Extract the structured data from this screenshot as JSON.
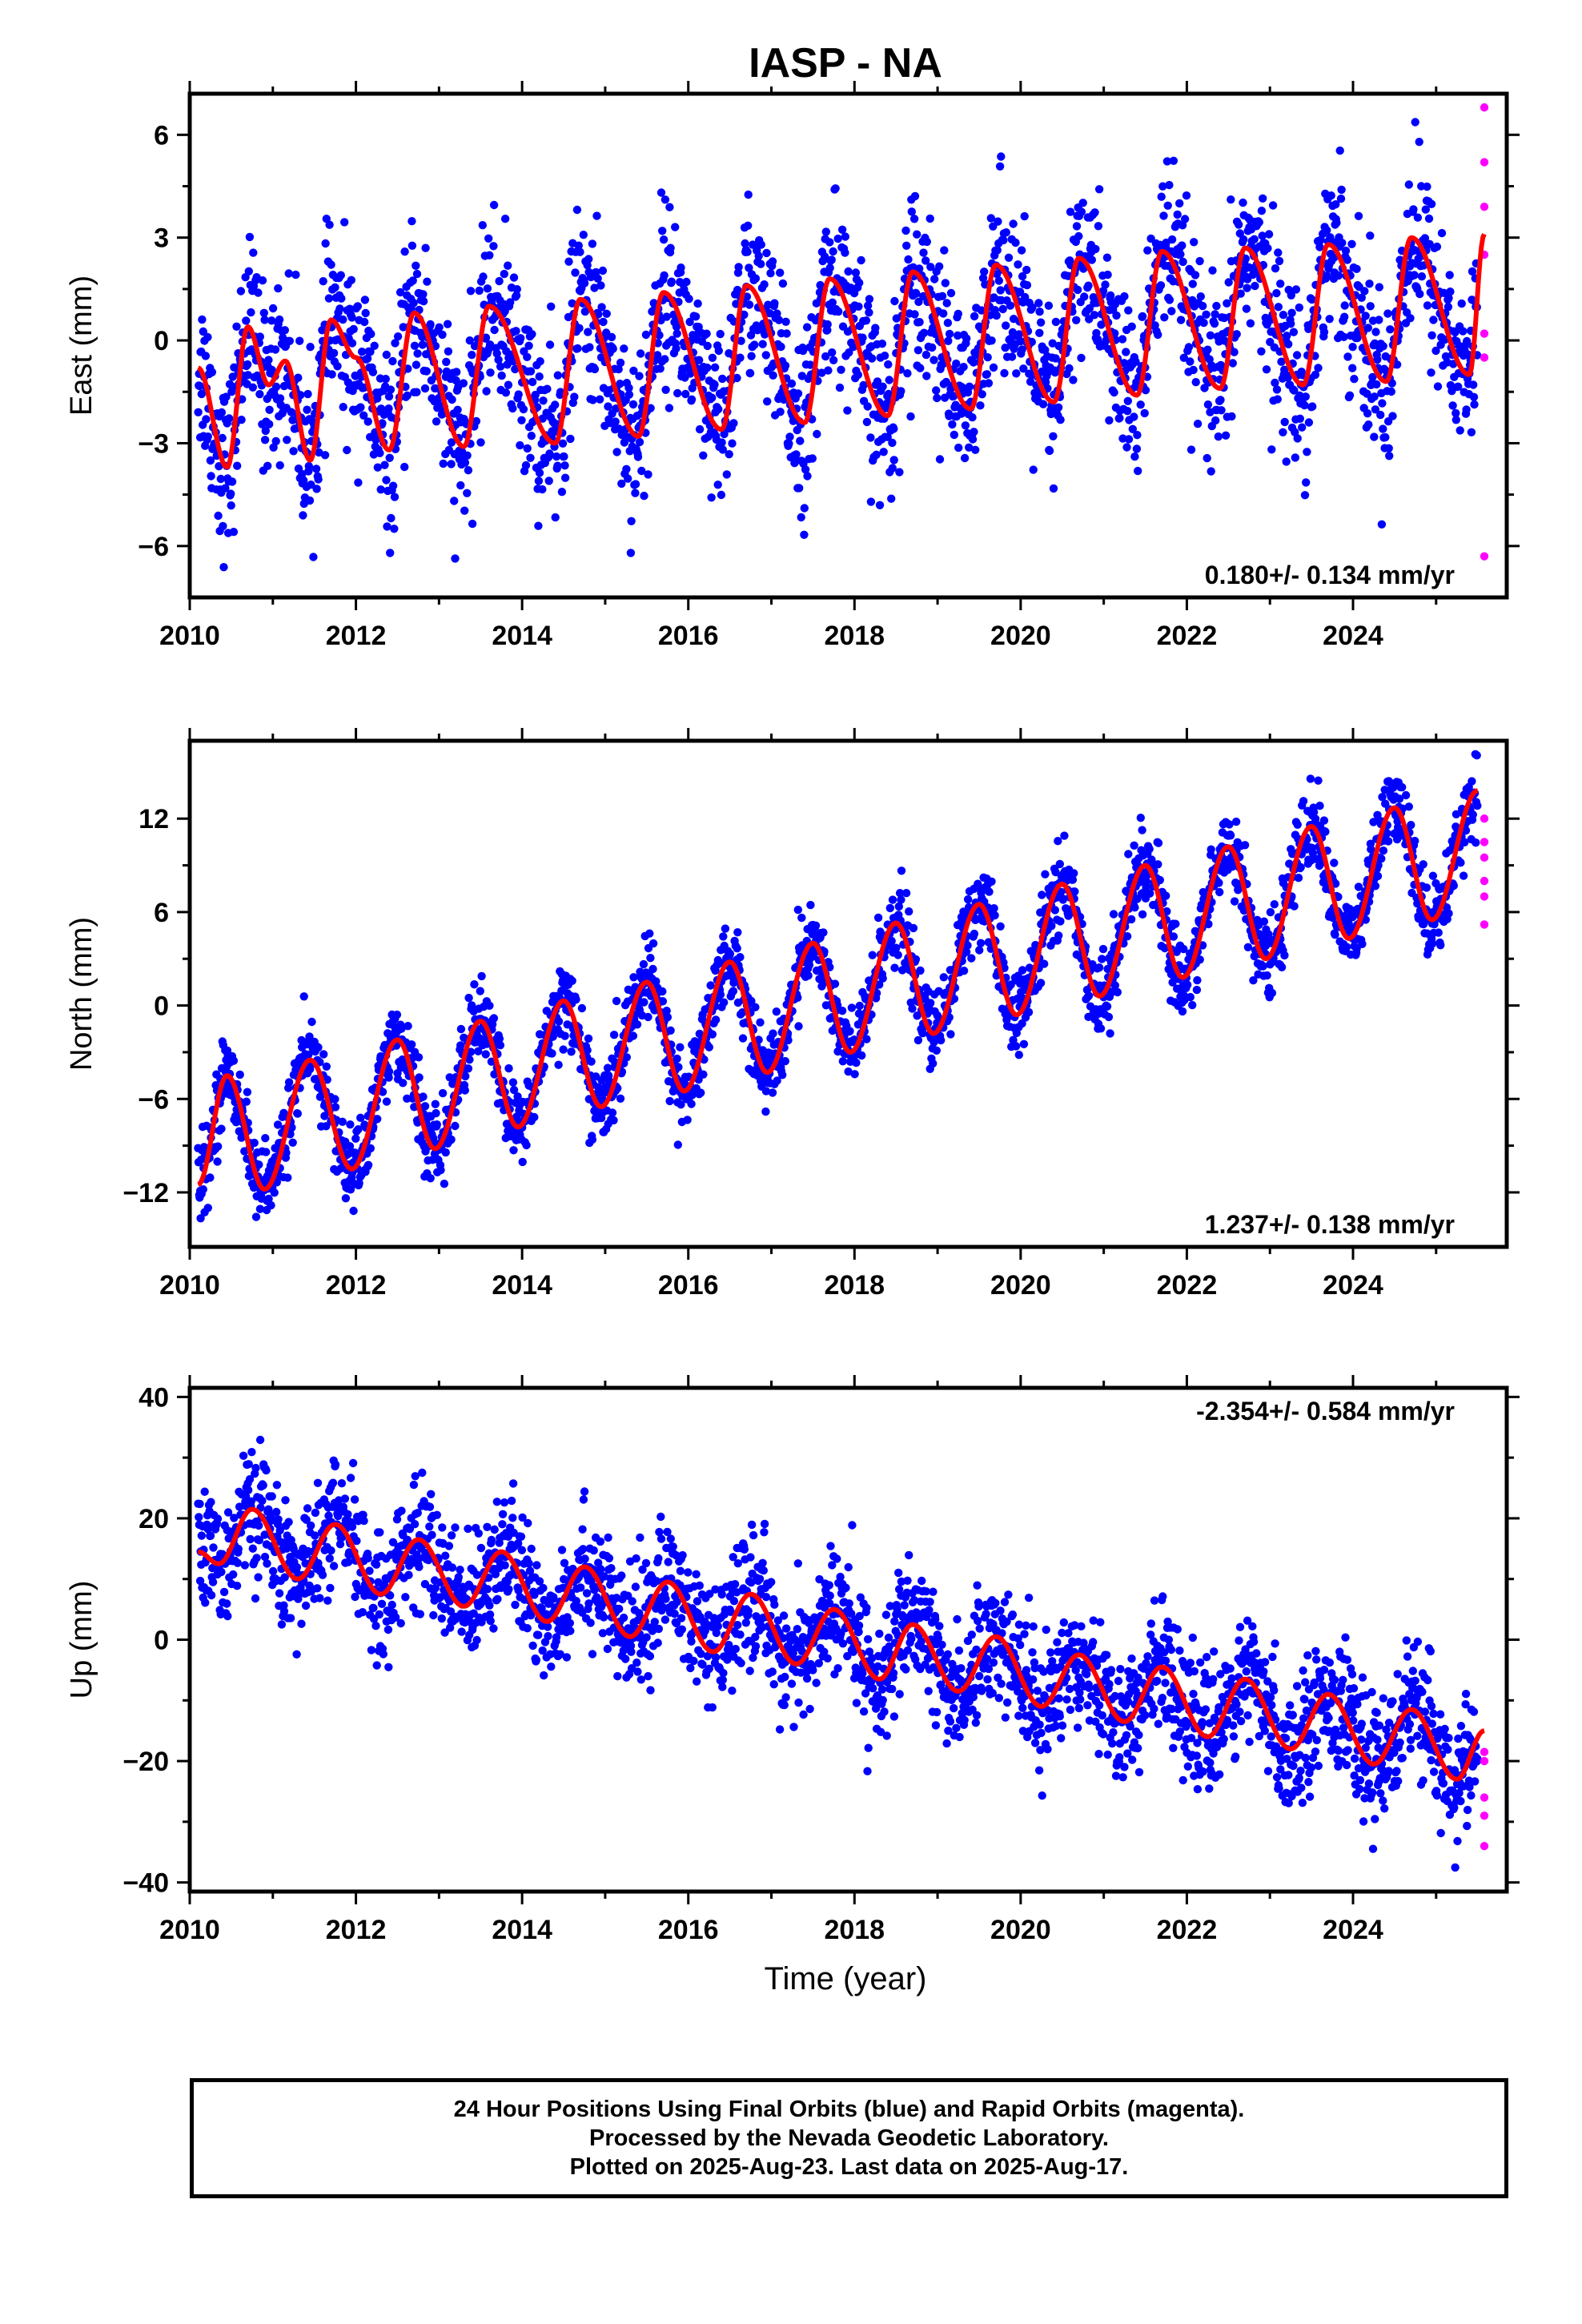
{
  "title": "IASP - NA",
  "xlabel": "Time (year)",
  "footer": {
    "line1": "24 Hour Positions Using Final Orbits (blue) and Rapid Orbits (magenta).",
    "line2": "Processed by the Nevada Geodetic Laboratory.",
    "line3": "Plotted on 2025-Aug-23. Last data on 2025-Aug-17."
  },
  "colors": {
    "final": "#0000ff",
    "rapid": "#ff00ff",
    "model": "#ff0000",
    "frame": "#000000"
  },
  "chart_data": [
    {
      "type": "scatter",
      "ylabel": "East (mm)",
      "rate": "0.180+/- 0.134 mm/yr",
      "rate_position": "bottom-right",
      "xlim": [
        2010.0,
        2025.85
      ],
      "ylim": [
        -7.5,
        7.2
      ],
      "xticks": [
        "2010",
        "2012",
        "2014",
        "2016",
        "2018",
        "2020",
        "2022",
        "2024"
      ],
      "yticks": [
        "-6",
        "-3",
        "0",
        "3",
        "6"
      ],
      "yticks_values": [
        -6,
        -3,
        0,
        3,
        6
      ],
      "grid": false,
      "series": [
        {
          "name": "Final Orbits",
          "data_range": [
            2010.1,
            2025.5
          ]
        },
        {
          "name": "Rapid Orbits",
          "x": 2025.58,
          "values": [
            6.8,
            5.2,
            3.9,
            2.5,
            0.2,
            -0.5,
            -6.3
          ]
        }
      ],
      "model": {
        "rate_mm_yr": 0.18,
        "annual_amplitude": 1.7,
        "semiannual_amplitude": 1.0,
        "points": [
          [
            2010.1,
            -0.8
          ],
          [
            2010.45,
            -3.7
          ],
          [
            2010.7,
            0.4
          ],
          [
            2010.95,
            -1.3
          ],
          [
            2011.15,
            -0.6
          ],
          [
            2011.45,
            -3.5
          ],
          [
            2011.7,
            0.6
          ],
          [
            2012.0,
            -0.5
          ],
          [
            2012.4,
            -3.2
          ],
          [
            2012.7,
            0.8
          ],
          [
            2013.3,
            -3.1
          ],
          [
            2013.6,
            1.0
          ],
          [
            2014.4,
            -3.0
          ],
          [
            2014.7,
            1.2
          ],
          [
            2015.4,
            -2.8
          ],
          [
            2015.7,
            1.4
          ],
          [
            2016.4,
            -2.6
          ],
          [
            2016.7,
            1.6
          ],
          [
            2017.4,
            -2.4
          ],
          [
            2017.7,
            1.8
          ],
          [
            2018.4,
            -2.2
          ],
          [
            2018.7,
            2.0
          ],
          [
            2019.4,
            -2.0
          ],
          [
            2019.7,
            2.2
          ],
          [
            2020.4,
            -1.8
          ],
          [
            2020.7,
            2.4
          ],
          [
            2021.4,
            -1.6
          ],
          [
            2021.7,
            2.6
          ],
          [
            2022.4,
            -1.4
          ],
          [
            2022.7,
            2.7
          ],
          [
            2023.4,
            -1.3
          ],
          [
            2023.7,
            2.8
          ],
          [
            2024.4,
            -1.2
          ],
          [
            2024.7,
            3.0
          ],
          [
            2025.4,
            -1.0
          ],
          [
            2025.58,
            3.1
          ]
        ]
      }
    },
    {
      "type": "scatter",
      "ylabel": "North (mm)",
      "rate": "1.237+/- 0.138 mm/yr",
      "rate_position": "bottom-right",
      "xlim": [
        2010.0,
        2025.85
      ],
      "ylim": [
        -15.5,
        17.0
      ],
      "xticks": [
        "2010",
        "2012",
        "2014",
        "2016",
        "2018",
        "2020",
        "2022",
        "2024"
      ],
      "yticks": [
        "-12",
        "-6",
        "0",
        "6",
        "12"
      ],
      "yticks_values": [
        -12,
        -6,
        0,
        6,
        12
      ],
      "grid": false,
      "series": [
        {
          "name": "Final Orbits",
          "data_range": [
            2010.1,
            2025.5
          ]
        },
        {
          "name": "Rapid Orbits",
          "x": 2025.58,
          "values": [
            12.0,
            10.5,
            9.5,
            8.0,
            7.0,
            5.2
          ]
        }
      ],
      "model": {
        "rate_mm_yr": 1.237,
        "annual_amplitude": 3.4,
        "points": [
          [
            2010.1,
            -11.5
          ],
          [
            2010.45,
            -4.5
          ],
          [
            2010.9,
            -11.8
          ],
          [
            2011.45,
            -3.5
          ],
          [
            2011.95,
            -10.5
          ],
          [
            2012.5,
            -2.2
          ],
          [
            2012.95,
            -9.2
          ],
          [
            2013.5,
            -1.0
          ],
          [
            2013.95,
            -7.8
          ],
          [
            2014.5,
            0.3
          ],
          [
            2014.95,
            -6.5
          ],
          [
            2015.5,
            1.5
          ],
          [
            2015.95,
            -5.5
          ],
          [
            2016.5,
            2.8
          ],
          [
            2016.95,
            -4.3
          ],
          [
            2017.5,
            4.0
          ],
          [
            2017.95,
            -3.0
          ],
          [
            2018.5,
            5.3
          ],
          [
            2018.95,
            -1.8
          ],
          [
            2019.5,
            6.5
          ],
          [
            2019.95,
            -0.6
          ],
          [
            2020.5,
            7.8
          ],
          [
            2020.95,
            0.6
          ],
          [
            2021.5,
            9.0
          ],
          [
            2021.95,
            1.8
          ],
          [
            2022.5,
            10.2
          ],
          [
            2022.95,
            3.0
          ],
          [
            2023.5,
            11.5
          ],
          [
            2023.95,
            4.3
          ],
          [
            2024.5,
            12.7
          ],
          [
            2024.95,
            5.5
          ],
          [
            2025.5,
            13.8
          ]
        ]
      }
    },
    {
      "type": "scatter",
      "ylabel": "Up (mm)",
      "rate": "-2.354+/- 0.584 mm/yr",
      "rate_position": "top-right",
      "xlim": [
        2010.0,
        2025.85
      ],
      "ylim": [
        -41.5,
        41.5
      ],
      "xticks": [
        "2010",
        "2012",
        "2014",
        "2016",
        "2018",
        "2020",
        "2022",
        "2024"
      ],
      "xlabel": "Time (year)",
      "yticks": [
        "-40",
        "-20",
        "0",
        "20",
        "40"
      ],
      "yticks_values": [
        -40,
        -20,
        0,
        20,
        40
      ],
      "grid": false,
      "series": [
        {
          "name": "Final Orbits",
          "data_range": [
            2010.1,
            2025.5
          ]
        },
        {
          "name": "Rapid Orbits",
          "x": 2025.58,
          "values": [
            -18.5,
            -20.0,
            -26.0,
            -29.0,
            -34.0
          ]
        }
      ],
      "model": {
        "rate_mm_yr": -2.354,
        "annual_amplitude": 5.0,
        "offset_at_2018.7_mm": -6.0,
        "points": [
          [
            2010.1,
            14.5
          ],
          [
            2010.35,
            12.5
          ],
          [
            2010.75,
            21.5
          ],
          [
            2011.3,
            10.0
          ],
          [
            2011.75,
            19.0
          ],
          [
            2012.3,
            7.5
          ],
          [
            2012.75,
            16.5
          ],
          [
            2013.3,
            5.5
          ],
          [
            2013.75,
            14.5
          ],
          [
            2014.3,
            3.0
          ],
          [
            2014.75,
            12.0
          ],
          [
            2015.3,
            0.5
          ],
          [
            2015.75,
            9.5
          ],
          [
            2016.3,
            -2.0
          ],
          [
            2016.75,
            7.5
          ],
          [
            2017.3,
            -4.0
          ],
          [
            2017.75,
            5.0
          ],
          [
            2018.3,
            -6.5
          ],
          [
            2018.7,
            2.5
          ],
          [
            2019.25,
            -8.5
          ],
          [
            2019.7,
            0.5
          ],
          [
            2020.25,
            -11.0
          ],
          [
            2020.7,
            -2.5
          ],
          [
            2021.25,
            -13.5
          ],
          [
            2021.7,
            -4.5
          ],
          [
            2022.25,
            -16.0
          ],
          [
            2022.7,
            -6.5
          ],
          [
            2023.25,
            -18.0
          ],
          [
            2023.7,
            -9.0
          ],
          [
            2024.25,
            -20.5
          ],
          [
            2024.7,
            -11.5
          ],
          [
            2025.25,
            -23.0
          ],
          [
            2025.58,
            -15.0
          ]
        ]
      }
    }
  ]
}
